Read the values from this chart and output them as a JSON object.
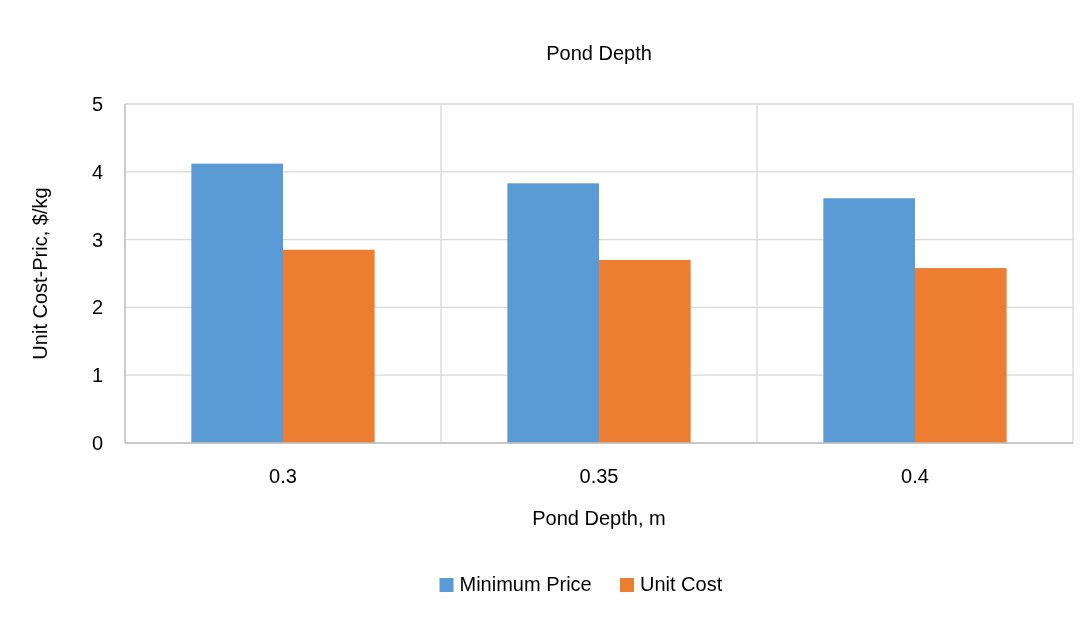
{
  "chart_data": {
    "type": "bar",
    "title": "Pond Depth",
    "xlabel": "Pond Depth, m",
    "ylabel": "Unit Cost-Pric, $/kg",
    "categories": [
      "0.3",
      "0.35",
      "0.4"
    ],
    "series": [
      {
        "name": "Minimum Price",
        "color": "#5b9bd5",
        "values": [
          4.12,
          3.83,
          3.61
        ]
      },
      {
        "name": "Unit Cost",
        "color": "#ed7d31",
        "values": [
          2.85,
          2.7,
          2.58
        ]
      }
    ],
    "ylim": [
      0,
      5
    ],
    "yticks": [
      0,
      1,
      2,
      3,
      4,
      5
    ],
    "grid": true,
    "legend": "bottom"
  }
}
